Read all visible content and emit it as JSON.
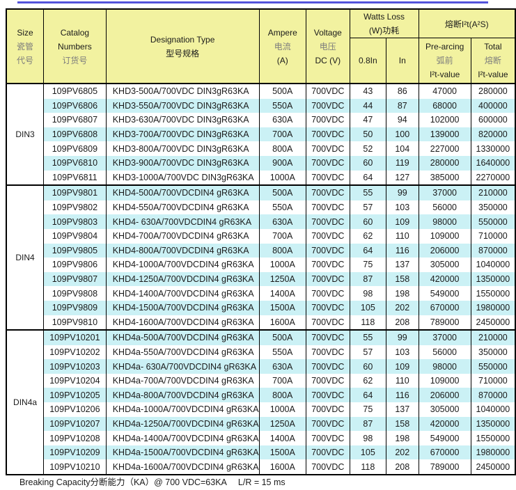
{
  "colors": {
    "top_line": "#5353db",
    "header_bg": "#f2f2a0",
    "stripe": "#cbf1f5"
  },
  "table": {
    "header": {
      "size": {
        "en": "Size",
        "zh1": "瓷管",
        "zh2": "代号"
      },
      "catalog": {
        "en1": "Catalog",
        "en2": "Numbers",
        "zh": "订货号"
      },
      "designation": {
        "en": "Designation Type",
        "zh": "型号规格"
      },
      "ampere": {
        "en": "Ampere",
        "zh": "电流",
        "unit": "(A)"
      },
      "voltage": {
        "en": "Voltage",
        "zh": "电压",
        "unit": "DC (V)"
      },
      "watts_group": {
        "en": "Watts Loss",
        "zh": "(W)功耗"
      },
      "col_08in": "0.8In",
      "col_in": "In",
      "i2t_group": "熔断I²t(A²S)",
      "prearcing": {
        "en": "Pre-arcing",
        "zh": "弧前",
        "sub": "I²t-value"
      },
      "total": {
        "en": "Total",
        "zh": "熔断",
        "sub": "I²t-value"
      }
    },
    "sections": [
      {
        "size": "DIN3",
        "first_cyan": false,
        "rows": [
          [
            "109PV6805",
            "KHD3-500A/700VDC DIN3gR63KA",
            "500A",
            "700VDC",
            "43",
            "86",
            "47000",
            "280000"
          ],
          [
            "109PV6806",
            "KHD3-550A/700VDC DIN3gR63KA",
            "550A",
            "700VDC",
            "44",
            "87",
            "68000",
            "400000"
          ],
          [
            "109PV6807",
            "KHD3-630A/700VDC DIN3gR63KA",
            "630A",
            "700VDC",
            "47",
            "94",
            "102000",
            "600000"
          ],
          [
            "109PV6808",
            "KHD3-700A/700VDC DIN3gR63KA",
            "700A",
            "700VDC",
            "50",
            "100",
            "139000",
            "820000"
          ],
          [
            "109PV6809",
            "KHD3-800A/700VDC DIN3gR63KA",
            "800A",
            "700VDC",
            "52",
            "104",
            "227000",
            "1330000"
          ],
          [
            "109PV6810",
            "KHD3-900A/700VDC DIN3gR63KA",
            "900A",
            "700VDC",
            "60",
            "119",
            "280000",
            "1640000"
          ],
          [
            "109PV6811",
            "KHD3-1000A/700VDC DIN3gR63KA",
            "1000A",
            "700VDC",
            "64",
            "127",
            "385000",
            "2270000"
          ]
        ]
      },
      {
        "size": "DIN4",
        "first_cyan": true,
        "rows": [
          [
            "109PV9801",
            "KHD4-500A/700VDCDIN4 gR63KA",
            "500A",
            "700VDC",
            "55",
            "99",
            "37000",
            "210000"
          ],
          [
            "109PV9802",
            "KHD4-550A/700VDCDIN4 gR63KA",
            "550A",
            "700VDC",
            "57",
            "103",
            "56000",
            "350000"
          ],
          [
            "109PV9803",
            "KHD4- 630A/700VDCDIN4 gR63KA",
            "630A",
            "700VDC",
            "60",
            "109",
            "98000",
            "550000"
          ],
          [
            "109PV9804",
            "KHD4-700A/700VDCDIN4 gR63KA",
            "700A",
            "700VDC",
            "62",
            "110",
            "109000",
            "710000"
          ],
          [
            "109PV9805",
            "KHD4-800A/700VDCDIN4 gR63KA",
            "800A",
            "700VDC",
            "64",
            "116",
            "206000",
            "870000"
          ],
          [
            "109PV9806",
            "KHD4-1000A/700VDCDIN4 gR63KA",
            "1000A",
            "700VDC",
            "75",
            "137",
            "305000",
            "1040000"
          ],
          [
            "109PV9807",
            "KHD4-1250A/700VDCDIN4 gR63KA",
            "1250A",
            "700VDC",
            "87",
            "158",
            "420000",
            "1350000"
          ],
          [
            "109PV9808",
            "KHD4-1400A/700VDCDIN4 gR63KA",
            "1400A",
            "700VDC",
            "98",
            "198",
            "549000",
            "1550000"
          ],
          [
            "109PV9809",
            "KHD4-1500A/700VDCDIN4 gR63KA",
            "1500A",
            "700VDC",
            "105",
            "202",
            "670000",
            "1980000"
          ],
          [
            "109PV9810",
            "KHD4-1600A/700VDCDIN4 gR63KA",
            "1600A",
            "700VDC",
            "118",
            "208",
            "789000",
            "2450000"
          ]
        ]
      },
      {
        "size": "DIN4a",
        "first_cyan": true,
        "rows": [
          [
            "109PV10201",
            "KHD4a-500A/700VDCDIN4 gR63KA",
            "500A",
            "700VDC",
            "55",
            "99",
            "37000",
            "210000"
          ],
          [
            "109PV10202",
            "KHD4a-550A/700VDCDIN4 gR63KA",
            "550A",
            "700VDC",
            "57",
            "103",
            "56000",
            "350000"
          ],
          [
            "109PV10203",
            "KHD4a- 630A/700VDCDIN4 gR63KA",
            "630A",
            "700VDC",
            "60",
            "109",
            "98000",
            "550000"
          ],
          [
            "109PV10204",
            "KHD4a-700A/700VDCDIN4 gR63KA",
            "700A",
            "700VDC",
            "62",
            "110",
            "109000",
            "710000"
          ],
          [
            "109PV10205",
            "KHD4a-800A/700VDCDIN4 gR63KA",
            "800A",
            "700VDC",
            "64",
            "116",
            "206000",
            "870000"
          ],
          [
            "109PV10206",
            "KHD4a-1000A/700VDCDIN4 gR63KA",
            "1000A",
            "700VDC",
            "75",
            "137",
            "305000",
            "1040000"
          ],
          [
            "109PV10207",
            "KHD4a-1250A/700VDCDIN4 gR63KA",
            "1250A",
            "700VDC",
            "87",
            "158",
            "420000",
            "1350000"
          ],
          [
            "109PV10208",
            "KHD4a-1400A/700VDCDIN4 gR63KA",
            "1400A",
            "700VDC",
            "98",
            "198",
            "549000",
            "1550000"
          ],
          [
            "109PV10209",
            "KHD4a-1500A/700VDCDIN4 gR63KA",
            "1500A",
            "700VDC",
            "105",
            "202",
            "670000",
            "1980000"
          ],
          [
            "109PV10210",
            "KHD4a-1600A/700VDCDIN4 gR63KA",
            "1600A",
            "700VDC",
            "118",
            "208",
            "789000",
            "2450000"
          ]
        ]
      }
    ]
  },
  "footer": {
    "left": "Breaking Capacity分断能力（KA）@ 700 VDC=63KA",
    "right": "L/R = 15 ms"
  }
}
